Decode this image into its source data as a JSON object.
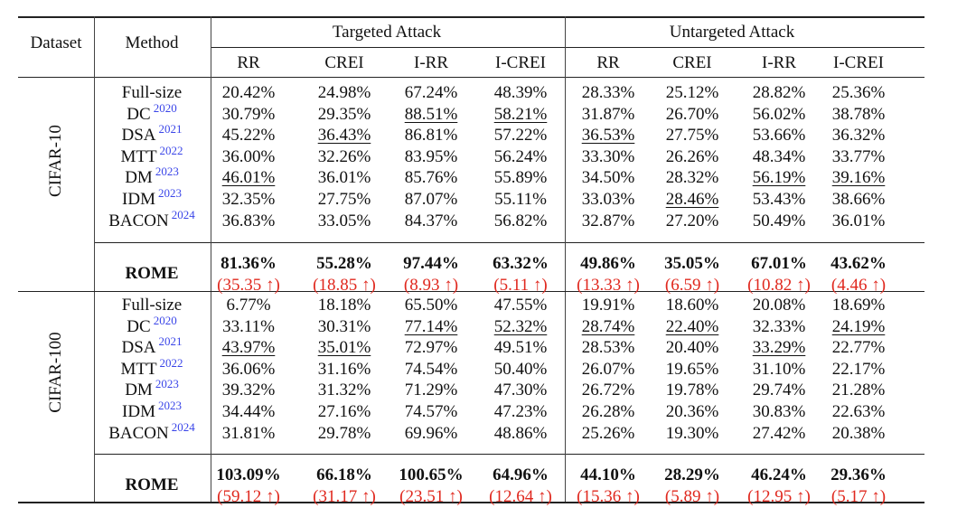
{
  "header": {
    "dataset": "Dataset",
    "method": "Method",
    "group_targeted": "Targeted Attack",
    "group_untargeted": "Untargeted Attack",
    "metrics": [
      "RR",
      "CREI",
      "I-RR",
      "I-CREI",
      "RR",
      "CREI",
      "I-RR",
      "I-CREI"
    ]
  },
  "datasets": [
    {
      "name": "CIFAR-10",
      "rows": [
        {
          "method": "Full-size",
          "year": "",
          "values": [
            "20.42%",
            "24.98%",
            "67.24%",
            "48.39%",
            "28.33%",
            "25.12%",
            "28.82%",
            "25.36%"
          ],
          "underline": []
        },
        {
          "method": "DC",
          "year": "2020",
          "values": [
            "30.79%",
            "29.35%",
            "88.51%",
            "58.21%",
            "31.87%",
            "26.70%",
            "56.02%",
            "38.78%"
          ],
          "underline": [
            2,
            3
          ]
        },
        {
          "method": "DSA",
          "year": "2021",
          "values": [
            "45.22%",
            "36.43%",
            "86.81%",
            "57.22%",
            "36.53%",
            "27.75%",
            "53.66%",
            "36.32%"
          ],
          "underline": [
            1,
            4
          ]
        },
        {
          "method": "MTT",
          "year": "2022",
          "values": [
            "36.00%",
            "32.26%",
            "83.95%",
            "56.24%",
            "33.30%",
            "26.26%",
            "48.34%",
            "33.77%"
          ],
          "underline": []
        },
        {
          "method": "DM",
          "year": "2023",
          "values": [
            "46.01%",
            "36.01%",
            "85.76%",
            "55.89%",
            "34.50%",
            "28.32%",
            "56.19%",
            "39.16%"
          ],
          "underline": [
            0,
            6,
            7
          ]
        },
        {
          "method": "IDM",
          "year": "2023",
          "values": [
            "32.35%",
            "27.75%",
            "87.07%",
            "55.11%",
            "33.03%",
            "28.46%",
            "53.43%",
            "38.66%"
          ],
          "underline": [
            5
          ]
        },
        {
          "method": "BACON",
          "year": "2024",
          "values": [
            "36.83%",
            "33.05%",
            "84.37%",
            "56.82%",
            "32.87%",
            "27.20%",
            "50.49%",
            "36.01%"
          ],
          "underline": []
        }
      ],
      "rome": {
        "method": "ROME",
        "values": [
          "81.36%",
          "55.28%",
          "97.44%",
          "63.32%",
          "49.86%",
          "35.05%",
          "67.01%",
          "43.62%"
        ],
        "gains": [
          "(35.35 ↑)",
          "(18.85 ↑)",
          "(8.93 ↑)",
          "(5.11 ↑)",
          "(13.33 ↑)",
          "(6.59 ↑)",
          "(10.82 ↑)",
          "(4.46 ↑)"
        ]
      }
    },
    {
      "name": "CIFAR-100",
      "rows": [
        {
          "method": "Full-size",
          "year": "",
          "values": [
            "6.77%",
            "18.18%",
            "65.50%",
            "47.55%",
            "19.91%",
            "18.60%",
            "20.08%",
            "18.69%"
          ],
          "underline": []
        },
        {
          "method": "DC",
          "year": "2020",
          "values": [
            "33.11%",
            "30.31%",
            "77.14%",
            "52.32%",
            "28.74%",
            "22.40%",
            "32.33%",
            "24.19%"
          ],
          "underline": [
            2,
            3,
            4,
            5,
            7
          ]
        },
        {
          "method": "DSA",
          "year": "2021",
          "values": [
            "43.97%",
            "35.01%",
            "72.97%",
            "49.51%",
            "28.53%",
            "20.40%",
            "33.29%",
            "22.77%"
          ],
          "underline": [
            0,
            1,
            6
          ]
        },
        {
          "method": "MTT",
          "year": "2022",
          "values": [
            "36.06%",
            "31.16%",
            "74.54%",
            "50.40%",
            "26.07%",
            "19.65%",
            "31.10%",
            "22.17%"
          ],
          "underline": []
        },
        {
          "method": "DM",
          "year": "2023",
          "values": [
            "39.32%",
            "31.32%",
            "71.29%",
            "47.30%",
            "26.72%",
            "19.78%",
            "29.74%",
            "21.28%"
          ],
          "underline": []
        },
        {
          "method": "IDM",
          "year": "2023",
          "values": [
            "34.44%",
            "27.16%",
            "74.57%",
            "47.23%",
            "26.28%",
            "20.36%",
            "30.83%",
            "22.63%"
          ],
          "underline": []
        },
        {
          "method": "BACON",
          "year": "2024",
          "values": [
            "31.81%",
            "29.78%",
            "69.96%",
            "48.86%",
            "25.26%",
            "19.30%",
            "27.42%",
            "20.38%"
          ],
          "underline": []
        }
      ],
      "rome": {
        "method": "ROME",
        "values": [
          "103.09%",
          "66.18%",
          "100.65%",
          "64.96%",
          "44.10%",
          "28.29%",
          "46.24%",
          "29.36%"
        ],
        "gains": [
          "(59.12 ↑)",
          "(31.17 ↑)",
          "(23.51 ↑)",
          "(12.64 ↑)",
          "(15.36 ↑)",
          "(5.89 ↑)",
          "(12.95 ↑)",
          "(5.17 ↑)"
        ]
      }
    }
  ],
  "colors": {
    "gain": "#e0281e",
    "citation_year": "#3a45e8"
  }
}
